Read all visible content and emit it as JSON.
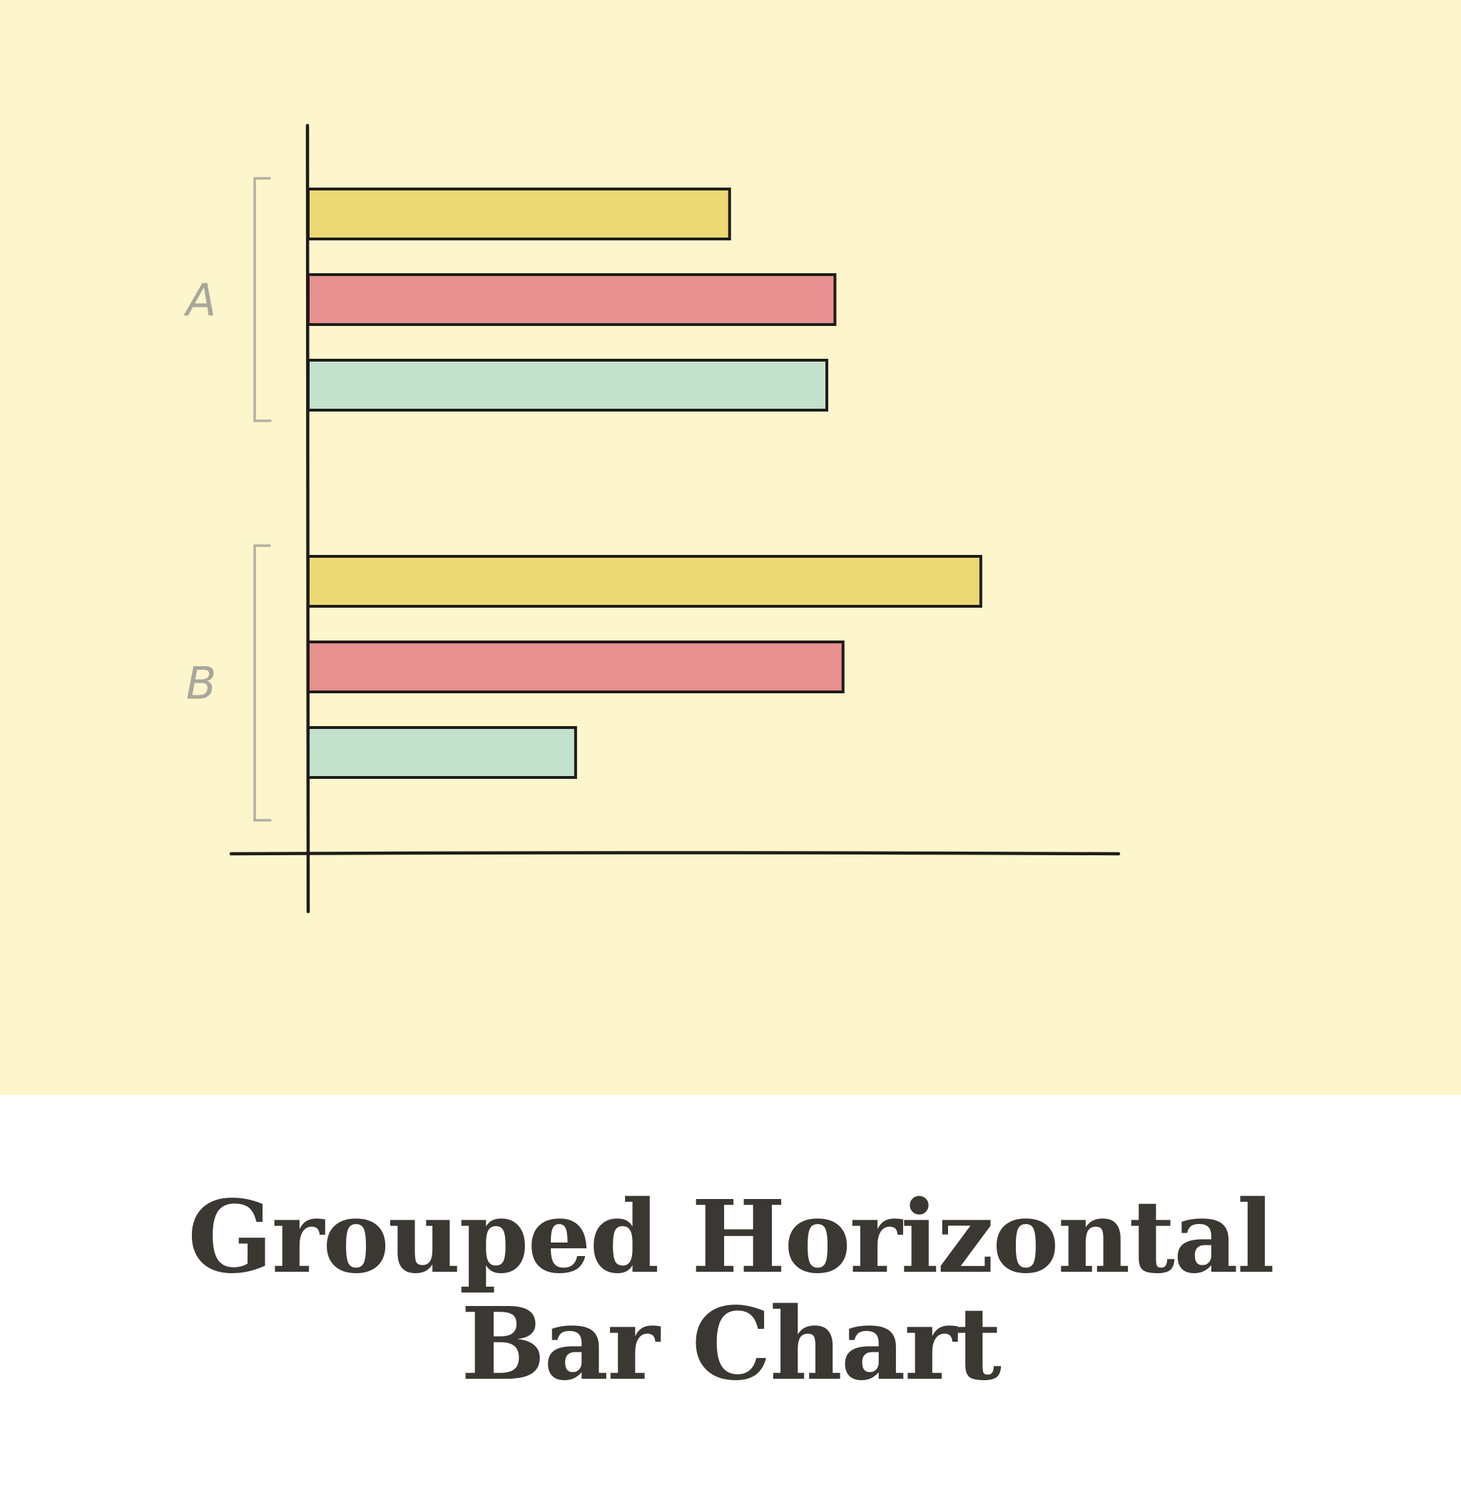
{
  "caption": {
    "line1": "Grouped Horizontal",
    "line2": "Bar Chart"
  },
  "colors": {
    "panel_background": "#fdf5cc",
    "page_background": "#ffffff",
    "axis": "#1f1d1a",
    "bracket": "#b3b0a4",
    "group_label": "#a9a69b",
    "caption_text": "#3b3833"
  },
  "chart_data": {
    "type": "bar",
    "orientation": "horizontal",
    "title": "",
    "xlabel": "",
    "ylabel": "",
    "categories": [
      "A",
      "B"
    ],
    "xlim": [
      0,
      100
    ],
    "grid": false,
    "legend": "none",
    "series": [
      {
        "color": "#ecd974",
        "values": [
          52,
          83
        ]
      },
      {
        "color": "#e79191",
        "values": [
          65,
          66
        ]
      },
      {
        "color": "#c3e2ce",
        "values": [
          64,
          33
        ]
      }
    ]
  }
}
